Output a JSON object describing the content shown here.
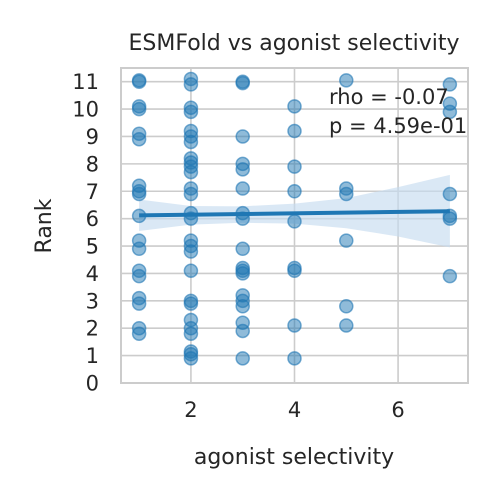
{
  "chart_data": {
    "type": "scatter",
    "title": "ESMFold vs agonist selectivity",
    "xlabel": "agonist selectivity",
    "ylabel": "Rank",
    "xlim": [
      0.65,
      7.35
    ],
    "ylim": [
      0,
      11.5
    ],
    "xticks": [
      "2",
      "4",
      "6"
    ],
    "xtick_values": [
      2,
      4,
      6
    ],
    "yticks": [
      "0",
      "1",
      "2",
      "3",
      "4",
      "5",
      "6",
      "7",
      "8",
      "9",
      "10",
      "11"
    ],
    "ytick_values": [
      0,
      1,
      2,
      3,
      4,
      5,
      6,
      7,
      8,
      9,
      10,
      11
    ],
    "grid": true,
    "point_color": "#1f77b4",
    "band_color": "#c6dbef",
    "annotations": [
      "rho = -0.07",
      "p = 4.59e-01"
    ],
    "points": [
      [
        1,
        11
      ],
      [
        1,
        11.05
      ],
      [
        1,
        10.1
      ],
      [
        1,
        10
      ],
      [
        1,
        9.1
      ],
      [
        1,
        8.9
      ],
      [
        1,
        7.2
      ],
      [
        1,
        7
      ],
      [
        1,
        6.9
      ],
      [
        1,
        6.1
      ],
      [
        1,
        5.2
      ],
      [
        1,
        4.9
      ],
      [
        1,
        4.1
      ],
      [
        1,
        3.9
      ],
      [
        1,
        3.1
      ],
      [
        1,
        2.9
      ],
      [
        1,
        2
      ],
      [
        1,
        1.8
      ],
      [
        2,
        11.1
      ],
      [
        2,
        10.9
      ],
      [
        2,
        10.05
      ],
      [
        2,
        9.9
      ],
      [
        2,
        9.2
      ],
      [
        2,
        9
      ],
      [
        2,
        8.8
      ],
      [
        2,
        8.2
      ],
      [
        2,
        8.05
      ],
      [
        2,
        7.9
      ],
      [
        2,
        7.7
      ],
      [
        2,
        7.1
      ],
      [
        2,
        6.9
      ],
      [
        2,
        6.2
      ],
      [
        2,
        6
      ],
      [
        2,
        5.2
      ],
      [
        2,
        5
      ],
      [
        2,
        4.8
      ],
      [
        2,
        4.1
      ],
      [
        2,
        3
      ],
      [
        2,
        2.9
      ],
      [
        2,
        2.3
      ],
      [
        2,
        2
      ],
      [
        2,
        1.8
      ],
      [
        2,
        1.15
      ],
      [
        2,
        1.05
      ],
      [
        2,
        0.9
      ],
      [
        3,
        11
      ],
      [
        3,
        10.95
      ],
      [
        3,
        9
      ],
      [
        3,
        8
      ],
      [
        3,
        7.8
      ],
      [
        3,
        7.1
      ],
      [
        3,
        6.2
      ],
      [
        3,
        6
      ],
      [
        3,
        4.9
      ],
      [
        3,
        4.2
      ],
      [
        3,
        4.1
      ],
      [
        3,
        4
      ],
      [
        3,
        3.2
      ],
      [
        3,
        3
      ],
      [
        3,
        2.8
      ],
      [
        3,
        2.2
      ],
      [
        3,
        1.9
      ],
      [
        3,
        0.9
      ],
      [
        4,
        10.1
      ],
      [
        4,
        9.2
      ],
      [
        4,
        7.9
      ],
      [
        4,
        7
      ],
      [
        4,
        5.9
      ],
      [
        4,
        4.2
      ],
      [
        4,
        4.1
      ],
      [
        4,
        2.1
      ],
      [
        4,
        0.9
      ],
      [
        5,
        11.05
      ],
      [
        5,
        7.1
      ],
      [
        5,
        6.9
      ],
      [
        5,
        5.2
      ],
      [
        5,
        2.8
      ],
      [
        5,
        2.1
      ],
      [
        7,
        10.9
      ],
      [
        7,
        10.2
      ],
      [
        7,
        9.9
      ],
      [
        7,
        6.9
      ],
      [
        7,
        6.1
      ],
      [
        7,
        6
      ],
      [
        7,
        3.9
      ]
    ],
    "regression": {
      "x": [
        1,
        7
      ],
      "y": [
        6.12,
        6.27
      ]
    },
    "confidence_band": {
      "x": [
        1,
        2,
        3,
        4,
        5,
        6,
        7
      ],
      "lower": [
        5.55,
        5.78,
        5.85,
        5.82,
        5.65,
        5.35,
        4.95
      ],
      "upper": [
        6.7,
        6.46,
        6.45,
        6.55,
        6.75,
        7.15,
        7.6
      ]
    }
  }
}
